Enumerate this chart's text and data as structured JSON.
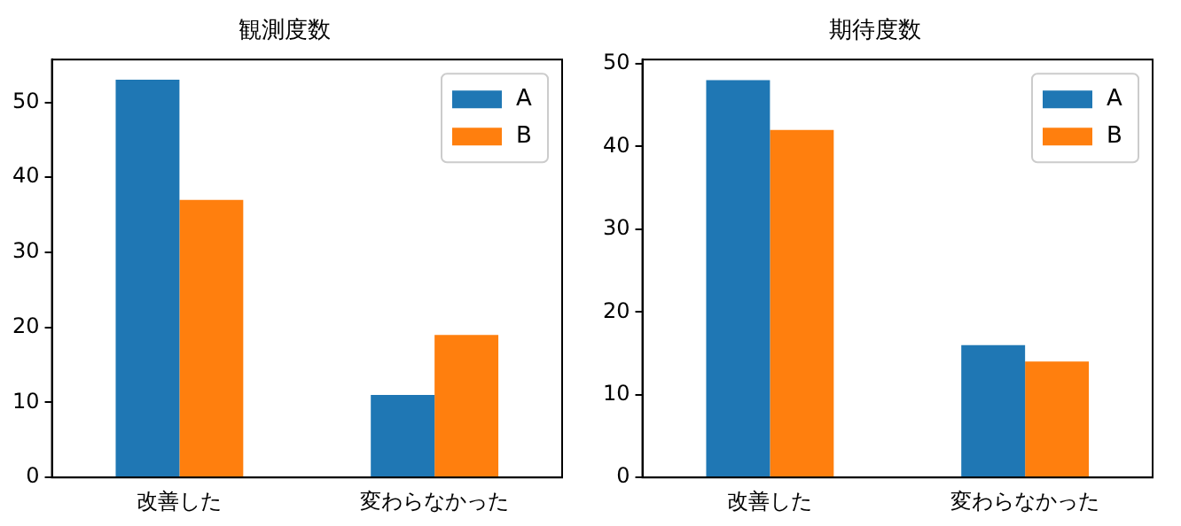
{
  "chart_data": [
    {
      "type": "bar",
      "title": "観測度数",
      "categories": [
        "改善した",
        "変わらなかった"
      ],
      "series": [
        {
          "name": "A",
          "color": "#1f77b4",
          "values": [
            53,
            11
          ]
        },
        {
          "name": "B",
          "color": "#ff7f0e",
          "values": [
            37,
            19
          ]
        }
      ],
      "ylim": [
        0,
        55.7
      ],
      "yticks": [
        0,
        10,
        20,
        30,
        40,
        50
      ],
      "grid": false,
      "legend": "top right"
    },
    {
      "type": "bar",
      "title": "期待度数",
      "categories": [
        "改善した",
        "変わらなかった"
      ],
      "series": [
        {
          "name": "A",
          "color": "#1f77b4",
          "values": [
            48,
            16
          ]
        },
        {
          "name": "B",
          "color": "#ff7f0e",
          "values": [
            42,
            14
          ]
        }
      ],
      "ylim": [
        0,
        50.5
      ],
      "yticks": [
        0,
        10,
        20,
        30,
        40,
        50
      ],
      "grid": false,
      "legend": "top right"
    }
  ]
}
